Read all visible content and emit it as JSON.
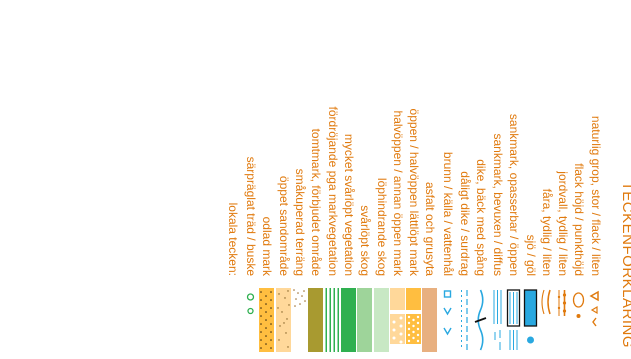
{
  "legend": {
    "title": "TECKENFÖRKLARING",
    "items": [
      {
        "label": "naturlig grop, stor / flack / liten",
        "symbol": "pits"
      },
      {
        "label": "flack höjd / punkthöjd",
        "symbol": "knolls"
      },
      {
        "label": "jordvall, tydlig / liten",
        "symbol": "earth-walls"
      },
      {
        "label": "fåra, tydlig / liten",
        "symbol": "erosion-gullies"
      },
      {
        "label": "sjö / göl",
        "symbol": "lake-pond"
      },
      {
        "label": "sankmark, opasserbar / öppen",
        "symbol": "marsh-open"
      },
      {
        "label": "sankmark, bevuxen / diffus",
        "symbol": "marsh-overgrown"
      },
      {
        "label": "dike, bäck med spång",
        "symbol": "stream-with-footbridge"
      },
      {
        "label": "dåligt dike / surdrag",
        "symbol": "minor-ditch"
      },
      {
        "label": "brunn / källa / vattenhål",
        "symbol": "water-features"
      },
      {
        "label": "asfalt och grusyta",
        "symbol": "paved-area",
        "color": "#e8b080"
      },
      {
        "label": "öppen / halvöppen lättlöpt mark",
        "symbol": "open-land",
        "color": "#ffbe40"
      },
      {
        "label": "halvöppen / annan öppen mark",
        "symbol": "semi-open-land",
        "color": "#ffd89a"
      },
      {
        "label": "löphindrande skog",
        "symbol": "slow-run-forest",
        "color": "#c8e8c4"
      },
      {
        "label": "svårlöpt skog",
        "symbol": "difficult-forest",
        "color": "#9ed49a"
      },
      {
        "label": "mycket svårlöpt vegetation",
        "symbol": "impassable-vegetation",
        "color": "#2fb050"
      },
      {
        "label": "fördröjande pga markvegetation",
        "symbol": "undergrowth-stripes",
        "color": "#2fb050"
      },
      {
        "label": "tomtmark, förbjudet område",
        "symbol": "out-of-bounds",
        "color": "#a89a30"
      },
      {
        "label": "småkuperad terräng",
        "symbol": "broken-ground",
        "color": "#9a6a2a"
      },
      {
        "label": "öppet sandområde",
        "symbol": "open-sand",
        "color": "#ffd89a"
      },
      {
        "label": "odlad mark",
        "symbol": "cultivated-land",
        "color": "#ffbe40"
      },
      {
        "label": "särpräglat träd / buske",
        "symbol": "distinct-trees",
        "color": "#2fb050"
      },
      {
        "label": "lokala tecken:",
        "symbol": "local-signs"
      }
    ]
  }
}
